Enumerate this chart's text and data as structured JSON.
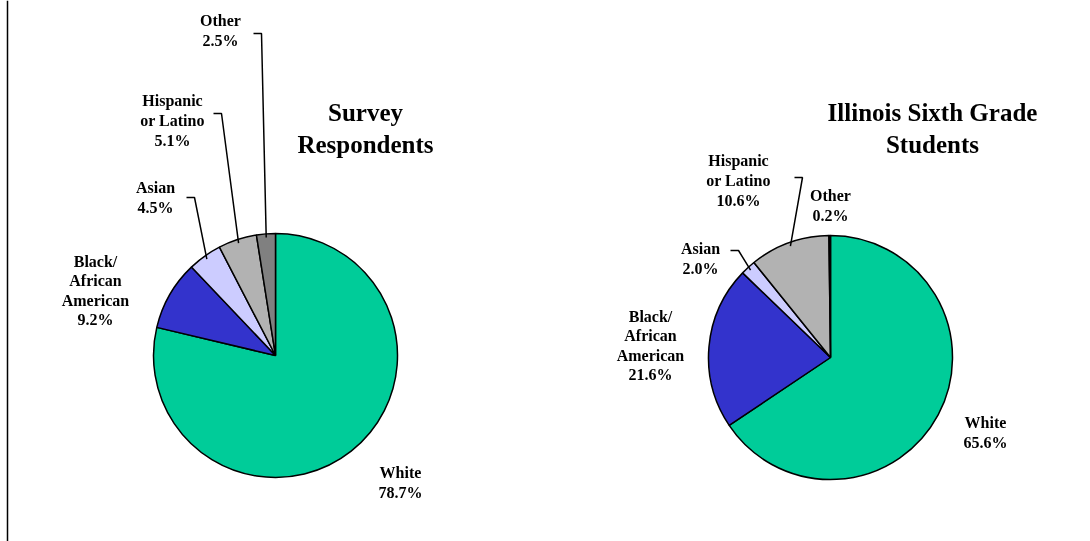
{
  "chart_data": [
    {
      "type": "pie",
      "title": "Survey\nRespondents",
      "categories": [
        "White",
        "Black/\nAfrican\nAmerican",
        "Asian",
        "Hispanic\nor Latino",
        "Other"
      ],
      "values": [
        78.7,
        9.2,
        4.5,
        5.1,
        2.5
      ],
      "colors": [
        "#00cc99",
        "#3333cc",
        "#ccccff",
        "#b2b2b2",
        "#808080"
      ],
      "value_labels": [
        "78.7%",
        "9.2%",
        "4.5%",
        "5.1%",
        "2.5%"
      ]
    },
    {
      "type": "pie",
      "title": "Illinois Sixth Grade\nStudents",
      "categories": [
        "White",
        "Black/\nAfrican\nAmerican",
        "Asian",
        "Hispanic\nor Latino",
        "Other"
      ],
      "values": [
        65.6,
        21.6,
        2.0,
        10.6,
        0.2
      ],
      "colors": [
        "#00cc99",
        "#3333cc",
        "#ccccff",
        "#b2b2b2",
        "#808080"
      ],
      "value_labels": [
        "65.6%",
        "21.6%",
        "2.0%",
        "10.6%",
        "0.2%"
      ]
    }
  ]
}
